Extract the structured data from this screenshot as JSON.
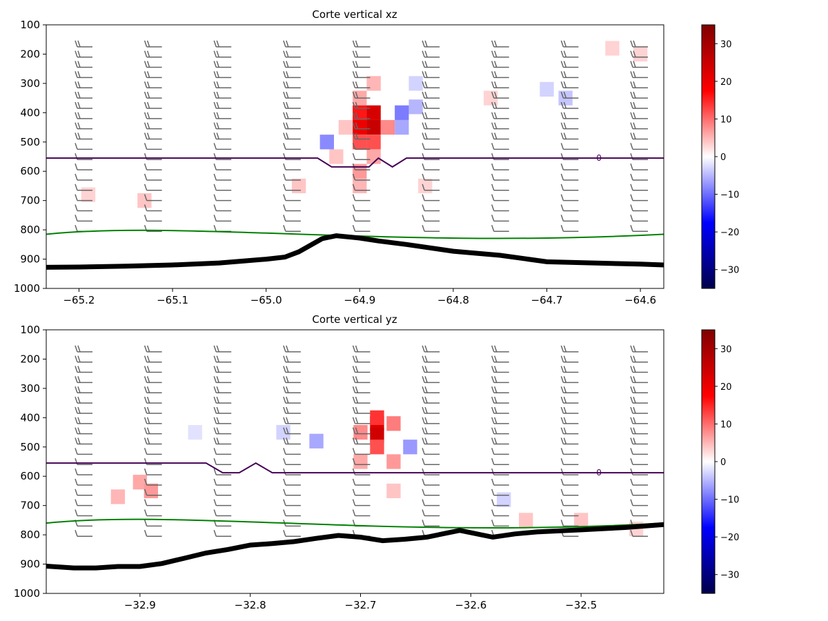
{
  "chart_data": [
    {
      "type": "heatmap",
      "title": "Corte vertical xz",
      "xlabel": "",
      "ylabel": "",
      "xlim": [
        -65.235,
        -64.575
      ],
      "ylim": [
        1000,
        100
      ],
      "y_inverted": true,
      "x_ticks": [
        -65.2,
        -65.1,
        -65.0,
        -64.9,
        -64.8,
        -64.7,
        -64.6
      ],
      "x_tick_labels": [
        "−65.2",
        "−65.1",
        "−65.0",
        "−64.9",
        "−64.8",
        "−64.7",
        "−64.6"
      ],
      "y_ticks": [
        100,
        200,
        300,
        400,
        500,
        600,
        700,
        800,
        900,
        1000
      ],
      "y_tick_labels": [
        "100",
        "200",
        "300",
        "400",
        "500",
        "600",
        "700",
        "800",
        "900",
        "1000"
      ],
      "colorbar": {
        "range": [
          -35,
          35
        ],
        "ticks": [
          30,
          20,
          10,
          0,
          -10,
          -20,
          -30
        ],
        "tick_labels": [
          "30",
          "20",
          "10",
          "0",
          "−10",
          "−20",
          "−30"
        ],
        "colormap": "seismic"
      },
      "field_cells": [
        {
          "x": -64.9,
          "p": 350,
          "v": 6
        },
        {
          "x": -64.9,
          "p": 400,
          "v": 16
        },
        {
          "x": -64.9,
          "p": 450,
          "v": 20
        },
        {
          "x": -64.9,
          "p": 500,
          "v": 12
        },
        {
          "x": -64.9,
          "p": 600,
          "v": 7
        },
        {
          "x": -64.9,
          "p": 650,
          "v": 5
        },
        {
          "x": -64.885,
          "p": 400,
          "v": 23
        },
        {
          "x": -64.885,
          "p": 450,
          "v": 25
        },
        {
          "x": -64.885,
          "p": 500,
          "v": 12
        },
        {
          "x": -64.885,
          "p": 550,
          "v": 6
        },
        {
          "x": -64.885,
          "p": 300,
          "v": 5
        },
        {
          "x": -64.87,
          "p": 450,
          "v": 8
        },
        {
          "x": -64.915,
          "p": 450,
          "v": 4
        },
        {
          "x": -64.925,
          "p": 550,
          "v": 4
        },
        {
          "x": -64.935,
          "p": 500,
          "v": -8
        },
        {
          "x": -64.855,
          "p": 400,
          "v": -9
        },
        {
          "x": -64.855,
          "p": 450,
          "v": -6
        },
        {
          "x": -64.84,
          "p": 380,
          "v": -5
        },
        {
          "x": -64.84,
          "p": 300,
          "v": -3
        },
        {
          "x": -64.965,
          "p": 650,
          "v": 4
        },
        {
          "x": -64.83,
          "p": 650,
          "v": 3
        },
        {
          "x": -65.13,
          "p": 700,
          "v": 4
        },
        {
          "x": -65.19,
          "p": 680,
          "v": 3
        },
        {
          "x": -64.7,
          "p": 320,
          "v": -3
        },
        {
          "x": -64.68,
          "p": 350,
          "v": -4
        },
        {
          "x": -64.63,
          "p": 180,
          "v": 3
        },
        {
          "x": -64.6,
          "p": 200,
          "v": 3
        },
        {
          "x": -64.76,
          "p": 350,
          "v": 3
        }
      ],
      "freezing_level_contour": {
        "label": "0",
        "color": "#440154",
        "pressure": [
          555,
          555,
          555,
          555,
          555,
          585,
          585,
          555,
          585,
          555,
          555,
          555,
          555
        ],
        "x": [
          -65.235,
          -65.1,
          -65.0,
          -64.96,
          -64.945,
          -64.93,
          -64.89,
          -64.88,
          -64.865,
          -64.85,
          -64.8,
          -64.65,
          -64.575
        ]
      },
      "terrain_pressure": {
        "x": [
          -65.235,
          -65.2,
          -65.15,
          -65.1,
          -65.05,
          -65.0,
          -64.98,
          -64.965,
          -64.94,
          -64.925,
          -64.9,
          -64.88,
          -64.85,
          -64.8,
          -64.75,
          -64.72,
          -64.7,
          -64.65,
          -64.6,
          -64.575
        ],
        "p": [
          928,
          927,
          924,
          920,
          913,
          900,
          893,
          875,
          830,
          820,
          828,
          838,
          850,
          873,
          887,
          900,
          909,
          913,
          917,
          920
        ]
      }
    },
    {
      "type": "heatmap",
      "title": "Corte vertical yz",
      "xlabel": "",
      "ylabel": "",
      "xlim": [
        -32.985,
        -32.425
      ],
      "ylim": [
        1000,
        100
      ],
      "y_inverted": true,
      "x_ticks": [
        -32.9,
        -32.8,
        -32.7,
        -32.6,
        -32.5
      ],
      "x_tick_labels": [
        "−32.9",
        "−32.8",
        "−32.7",
        "−32.6",
        "−32.5"
      ],
      "y_ticks": [
        100,
        200,
        300,
        400,
        500,
        600,
        700,
        800,
        900,
        1000
      ],
      "y_tick_labels": [
        "100",
        "200",
        "300",
        "400",
        "500",
        "600",
        "700",
        "800",
        "900",
        "1000"
      ],
      "colorbar": {
        "range": [
          -35,
          35
        ],
        "ticks": [
          30,
          20,
          10,
          0,
          -10,
          -20,
          -30
        ],
        "tick_labels": [
          "30",
          "20",
          "10",
          "0",
          "−10",
          "−20",
          "−30"
        ],
        "colormap": "seismic"
      },
      "field_cells": [
        {
          "x": -32.685,
          "p": 420,
          "v": 22
        },
        {
          "x": -32.685,
          "p": 460,
          "v": 24
        },
        {
          "x": -32.685,
          "p": 400,
          "v": 14
        },
        {
          "x": -32.685,
          "p": 500,
          "v": 12
        },
        {
          "x": -32.7,
          "p": 450,
          "v": 8
        },
        {
          "x": -32.7,
          "p": 550,
          "v": 6
        },
        {
          "x": -32.67,
          "p": 420,
          "v": 9
        },
        {
          "x": -32.67,
          "p": 550,
          "v": 7
        },
        {
          "x": -32.67,
          "p": 650,
          "v": 4
        },
        {
          "x": -32.74,
          "p": 480,
          "v": -6
        },
        {
          "x": -32.655,
          "p": 500,
          "v": -7
        },
        {
          "x": -32.77,
          "p": 450,
          "v": -3
        },
        {
          "x": -32.9,
          "p": 620,
          "v": 6
        },
        {
          "x": -32.89,
          "p": 650,
          "v": 7
        },
        {
          "x": -32.92,
          "p": 670,
          "v": 5
        },
        {
          "x": -32.55,
          "p": 750,
          "v": 4
        },
        {
          "x": -32.5,
          "p": 750,
          "v": 4
        },
        {
          "x": -32.45,
          "p": 780,
          "v": 3
        },
        {
          "x": -32.85,
          "p": 450,
          "v": -2
        },
        {
          "x": -32.57,
          "p": 680,
          "v": -3
        }
      ],
      "freezing_level_contour": {
        "label": "0",
        "color": "#440154",
        "pressure": [
          555,
          555,
          555,
          588,
          588,
          555,
          588,
          588,
          588,
          588,
          588
        ],
        "x": [
          -32.985,
          -32.9,
          -32.84,
          -32.825,
          -32.81,
          -32.795,
          -32.78,
          -32.7,
          -32.6,
          -32.5,
          -32.425
        ]
      },
      "terrain_pressure": {
        "x": [
          -32.985,
          -32.96,
          -32.94,
          -32.92,
          -32.9,
          -32.88,
          -32.86,
          -32.84,
          -32.82,
          -32.8,
          -32.78,
          -32.76,
          -32.74,
          -32.72,
          -32.7,
          -32.68,
          -32.66,
          -32.64,
          -32.61,
          -32.58,
          -32.56,
          -32.54,
          -32.5,
          -32.46,
          -32.425
        ],
        "p": [
          907,
          913,
          913,
          908,
          908,
          898,
          880,
          862,
          850,
          835,
          830,
          823,
          812,
          802,
          808,
          820,
          815,
          808,
          785,
          808,
          797,
          790,
          783,
          775,
          765
        ]
      }
    }
  ]
}
